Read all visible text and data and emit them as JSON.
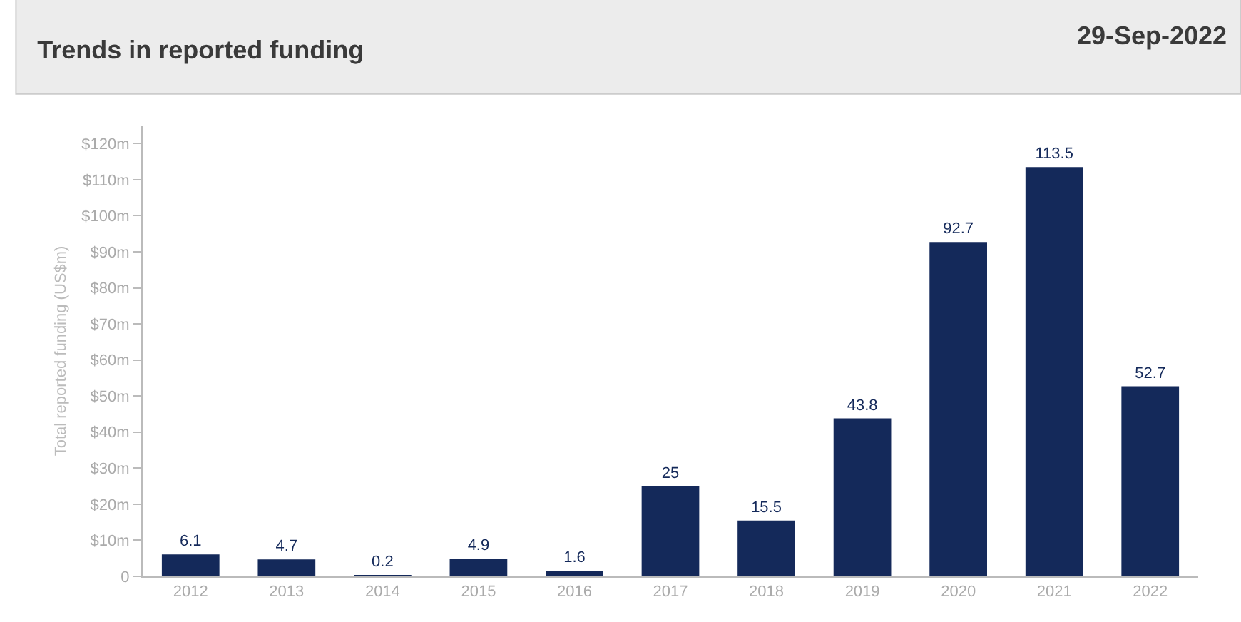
{
  "chart_data": {
    "type": "bar",
    "title": "Trends in reported funding",
    "subtitle": "29-Sep-2022",
    "ylabel": "Total reported funding (US$m)",
    "categories": [
      "2012",
      "2013",
      "2014",
      "2015",
      "2016",
      "2017",
      "2018",
      "2019",
      "2020",
      "2021",
      "2022"
    ],
    "values": [
      6.1,
      4.7,
      0.2,
      4.9,
      1.6,
      25,
      15.5,
      43.8,
      92.7,
      113.5,
      52.7
    ],
    "color": "#14295a",
    "data_labels": true,
    "grid": false,
    "legend": false,
    "ylim": [
      0,
      125
    ],
    "yticks": [
      0,
      {
        "value": 10,
        "label": "$10m"
      },
      {
        "value": 20,
        "label": "$20m"
      },
      {
        "value": 30,
        "label": "$30m"
      },
      {
        "value": 40,
        "label": "$40m"
      },
      {
        "value": 50,
        "label": "$50m"
      },
      {
        "value": 60,
        "label": "$60m"
      },
      {
        "value": 70,
        "label": "$70m"
      },
      {
        "value": 80,
        "label": "$80m"
      },
      {
        "value": 90,
        "label": "$90m"
      },
      {
        "value": 100,
        "label": "$100m"
      },
      {
        "value": 110,
        "label": "$110m"
      },
      {
        "value": 120,
        "label": "$120m"
      }
    ]
  }
}
